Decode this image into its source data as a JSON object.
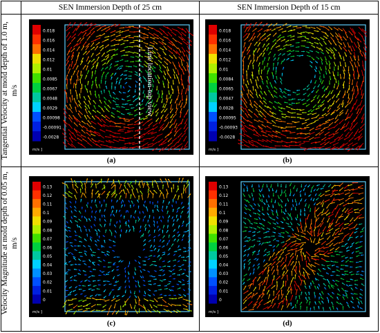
{
  "columns": [
    "SEN Immersion Depth of 25 cm",
    "SEN Immersion Depth of 15 cm"
  ],
  "rows": [
    "Tangential Velocity at mold depth of 1.0 m, m/s",
    "Velocity Magnitude at mold depth of 0.05 m, m/s"
  ],
  "panels": [
    {
      "caption": "(a)",
      "units": "m/s ]",
      "scale": [
        "0.018",
        "0.016",
        "0.014",
        "0.012",
        "0.01",
        "0.0085",
        "0.0067",
        "0.0048",
        "0.0029",
        "0.00098",
        "-0.00091",
        "-0.0028"
      ],
      "annotation": "Line location-top view"
    },
    {
      "caption": "(b)",
      "units": "m/s ]",
      "scale": [
        "0.018",
        "0.016",
        "0.014",
        "0.012",
        "0.01",
        "0.0084",
        "0.0065",
        "0.0047",
        "0.0028",
        "0.00095",
        "-0.00093",
        "-0.0028"
      ]
    },
    {
      "caption": "(c)",
      "units": "m/s ]",
      "scale": [
        "0.13",
        "0.12",
        "0.11",
        "0.1",
        "0.09",
        "0.08",
        "0.07",
        "0.06",
        "0.05",
        "0.04",
        "0.03",
        "0.02",
        "0.01",
        "0"
      ]
    },
    {
      "caption": "(d)",
      "units": "m/s ]",
      "scale": [
        "0.13",
        "0.12",
        "0.11",
        "0.1",
        "0.09",
        "0.08",
        "0.07",
        "0.06",
        "0.05",
        "0.04",
        "0.03",
        "0.02",
        "0.01",
        "0"
      ]
    }
  ],
  "colors": {
    "colormap": [
      "#e00000",
      "#ff3000",
      "#ff7000",
      "#ffaa00",
      "#f0e000",
      "#b0f000",
      "#40e000",
      "#00d040",
      "#00c8a0",
      "#00d0ff",
      "#0090ff",
      "#0050ff",
      "#0020e0",
      "#0000b0"
    ]
  }
}
